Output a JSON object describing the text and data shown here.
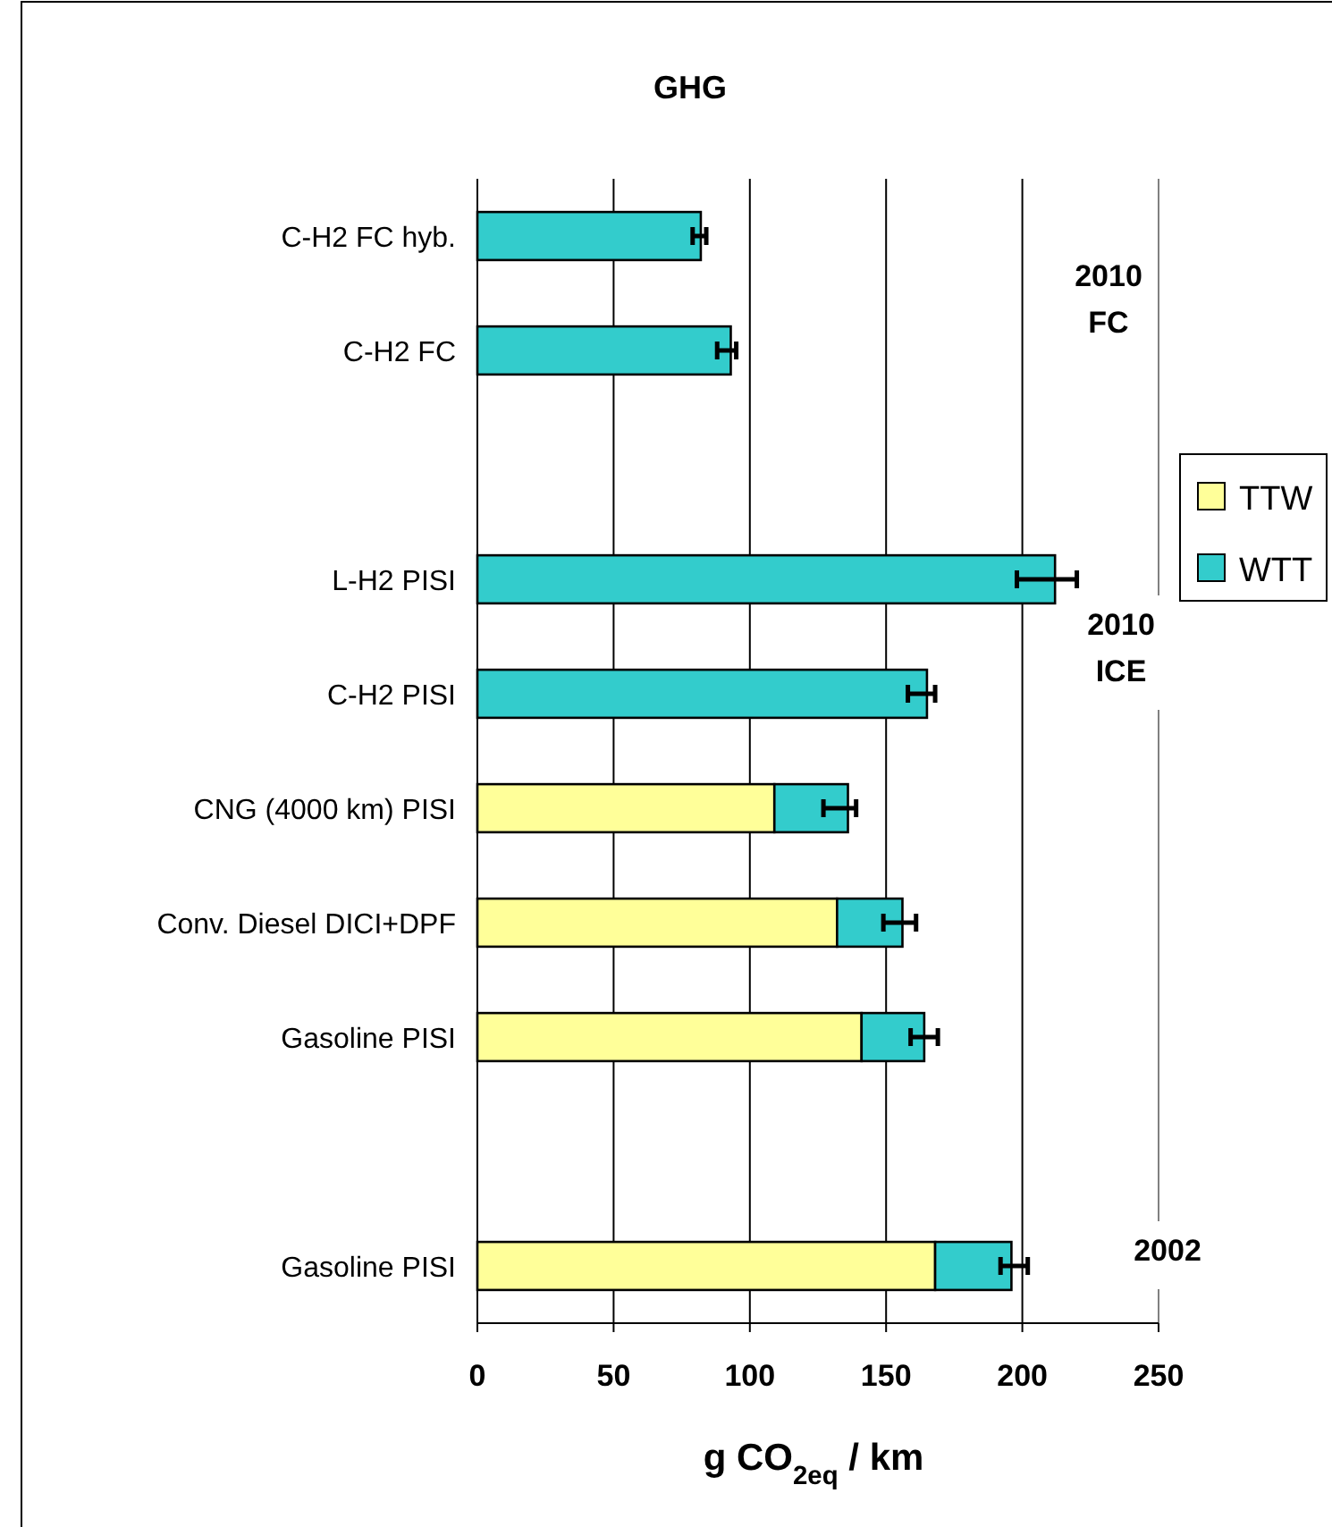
{
  "chart_data": {
    "type": "bar",
    "orientation": "horizontal",
    "stacked": true,
    "title": "GHG",
    "xlabel": "g CO$_{2eq}$ /  km",
    "categories": [
      "C-H2 FC hyb.",
      "C-H2 FC",
      null,
      "L-H2 PISI",
      "C-H2 PISI",
      "CNG (4000 km)  PISI",
      "Conv. Diesel DICI+DPF",
      "Gasoline PISI",
      null,
      "Gasoline PISI"
    ],
    "series": [
      {
        "name": "TTW",
        "color": "#ffff99",
        "values": [
          null,
          null,
          null,
          null,
          null,
          109,
          132,
          141,
          null,
          168
        ]
      },
      {
        "name": "WTT",
        "color": "#33cccc",
        "values": [
          82,
          93,
          null,
          212,
          165,
          27,
          24,
          23,
          null,
          28
        ],
        "errors": [
          [
            79,
            84
          ],
          [
            88,
            95
          ],
          null,
          [
            198,
            220
          ],
          [
            158,
            168
          ],
          [
            127,
            139
          ],
          [
            149,
            161
          ],
          [
            159,
            169
          ],
          null,
          [
            192,
            202
          ]
        ]
      }
    ],
    "xlim": [
      0,
      250
    ],
    "xticks": [
      0,
      50,
      100,
      150,
      200,
      250
    ],
    "grid": "x",
    "legend": "right",
    "annotations": [
      "2010\nFC",
      "2010\nICE",
      "2002"
    ]
  }
}
